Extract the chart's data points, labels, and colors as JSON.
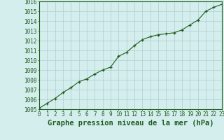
{
  "x": [
    0,
    1,
    2,
    3,
    4,
    5,
    6,
    7,
    8,
    9,
    10,
    11,
    12,
    13,
    14,
    15,
    16,
    17,
    18,
    19,
    20,
    21,
    22,
    23
  ],
  "y": [
    1005.1,
    1005.6,
    1006.1,
    1006.7,
    1007.2,
    1007.8,
    1008.1,
    1008.6,
    1009.0,
    1009.3,
    1010.4,
    1010.8,
    1011.5,
    1012.1,
    1012.4,
    1012.6,
    1012.7,
    1012.8,
    1013.1,
    1013.6,
    1014.1,
    1015.0,
    1015.4,
    1015.7
  ],
  "xlim": [
    0,
    23
  ],
  "ylim": [
    1005,
    1016
  ],
  "yticks": [
    1005,
    1006,
    1007,
    1008,
    1009,
    1010,
    1011,
    1012,
    1013,
    1014,
    1015,
    1016
  ],
  "xticks": [
    0,
    1,
    2,
    3,
    4,
    5,
    6,
    7,
    8,
    9,
    10,
    11,
    12,
    13,
    14,
    15,
    16,
    17,
    18,
    19,
    20,
    21,
    22,
    23
  ],
  "xlabel": "Graphe pression niveau de la mer (hPa)",
  "line_color": "#1e5c1e",
  "marker": "+",
  "bg_color": "#d4eded",
  "grid_color": "#b0cccc",
  "tick_label_color": "#1e5c1e",
  "xlabel_color": "#1e5c1e",
  "tick_fontsize": 5.5,
  "xlabel_fontsize": 7.5,
  "linewidth": 0.8,
  "markersize": 3.5,
  "markeredgewidth": 0.9
}
